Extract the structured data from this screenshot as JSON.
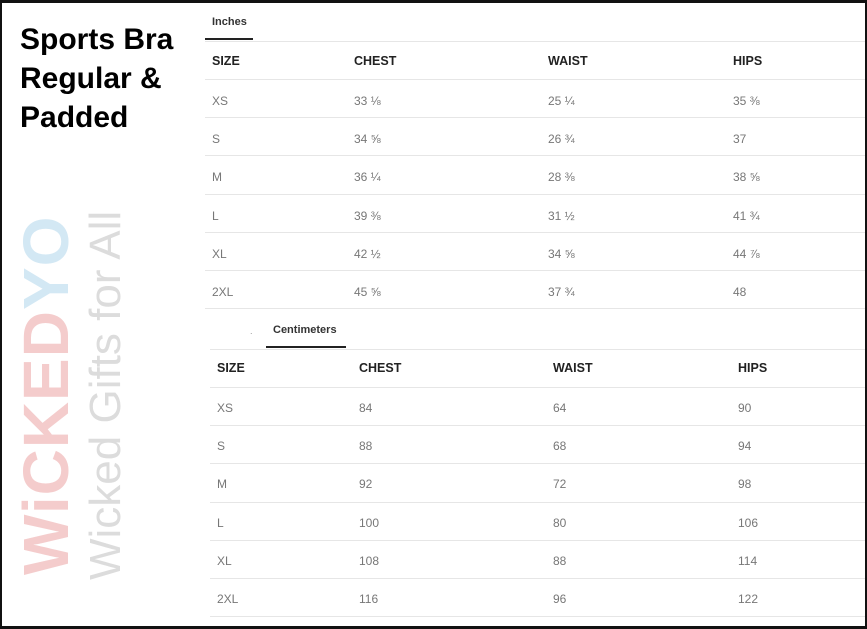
{
  "title": [
    "Sports Bra",
    "Regular &",
    "Padded"
  ],
  "watermark": {
    "logo_pink": "WiCKED",
    "logo_blue": "YO",
    "tagline": "Wicked Gifts for All",
    "colors": {
      "pink": "#f4cccc",
      "blue": "#d3e8f4"
    }
  },
  "inches": {
    "tab": "Inches",
    "headers": [
      "SIZE",
      "CHEST",
      "WAIST",
      "HIPS"
    ],
    "rows": [
      [
        "XS",
        "33 ⅛",
        "25 ¼",
        "35 ⅜"
      ],
      [
        "S",
        "34 ⅝",
        "26 ¾",
        "37"
      ],
      [
        "M",
        "36 ¼",
        "28 ⅜",
        "38 ⅝"
      ],
      [
        "L",
        "39 ⅜",
        "31 ½",
        "41 ¾"
      ],
      [
        "XL",
        "42 ½",
        "34 ⅝",
        "44 ⅞"
      ],
      [
        "2XL",
        "45 ⅝",
        "37 ¾",
        "48"
      ]
    ]
  },
  "centimeters": {
    "tab": "Centimeters",
    "headers": [
      "SIZE",
      "CHEST",
      "WAIST",
      "HIPS"
    ],
    "rows": [
      [
        "XS",
        "84",
        "64",
        "90"
      ],
      [
        "S",
        "88",
        "68",
        "94"
      ],
      [
        "M",
        "92",
        "72",
        "98"
      ],
      [
        "L",
        "100",
        "80",
        "106"
      ],
      [
        "XL",
        "108",
        "88",
        "114"
      ],
      [
        "2XL",
        "116",
        "96",
        "122"
      ]
    ]
  }
}
